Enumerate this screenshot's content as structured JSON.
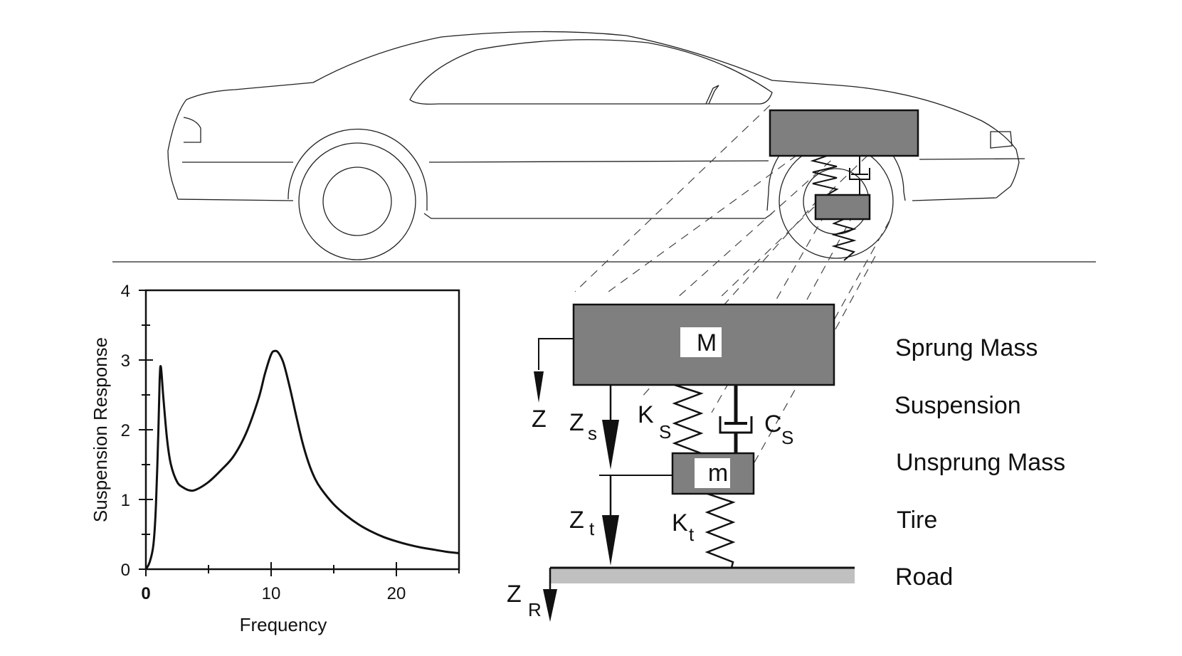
{
  "chart_data": {
    "type": "line",
    "xlabel": "Frequency",
    "ylabel": "Suspension Response",
    "xlim": [
      0,
      25
    ],
    "ylim": [
      0,
      4
    ],
    "x_ticks": [
      "0",
      "10",
      "20"
    ],
    "y_ticks": [
      "0",
      "1",
      "2",
      "3",
      "4"
    ],
    "grid": false,
    "series": [
      {
        "x": [
          0,
          0.3,
          0.6,
          0.8,
          1.0,
          1.1,
          1.2,
          1.4,
          1.7,
          2.0,
          2.5,
          3.0,
          3.5,
          4.0,
          5.0,
          6.0,
          7.0,
          8.0,
          9.0,
          9.5,
          10.0,
          10.3,
          10.6,
          11.0,
          11.5,
          12.0,
          12.5,
          13.0,
          13.5,
          14.0,
          15.0,
          16.0,
          17.0,
          18.0,
          19.0,
          20.0,
          21.0,
          22.0,
          23.0,
          24.0,
          25.0
        ],
        "y": [
          0,
          0.1,
          0.35,
          0.9,
          2.0,
          2.72,
          2.9,
          2.45,
          1.85,
          1.5,
          1.25,
          1.17,
          1.13,
          1.14,
          1.25,
          1.42,
          1.62,
          1.95,
          2.45,
          2.8,
          3.08,
          3.13,
          3.1,
          2.95,
          2.6,
          2.2,
          1.82,
          1.52,
          1.3,
          1.15,
          0.93,
          0.77,
          0.64,
          0.54,
          0.46,
          0.4,
          0.35,
          0.31,
          0.28,
          0.25,
          0.23
        ]
      }
    ]
  },
  "diagram": {
    "mass_big": "M",
    "mass_small": "m",
    "sym_z": "Z",
    "sym_zs": "Z",
    "sub_zs": "s",
    "sym_zt": "Z",
    "sub_zt": "t",
    "sym_zr": "Z",
    "sub_zr": "R",
    "sym_ks": "K",
    "sub_ks": "S",
    "sym_cs": "C",
    "sub_cs": "S",
    "sym_kt": "K",
    "sub_kt": "t"
  },
  "labels": {
    "sprung_mass": "Sprung Mass",
    "suspension": "Suspension",
    "unsprung_mass": "Unsprung Mass",
    "tire": "Tire",
    "road": "Road"
  },
  "colors": {
    "mass_fill": "#7f7f7f",
    "road_fill": "#c0c0c0"
  }
}
